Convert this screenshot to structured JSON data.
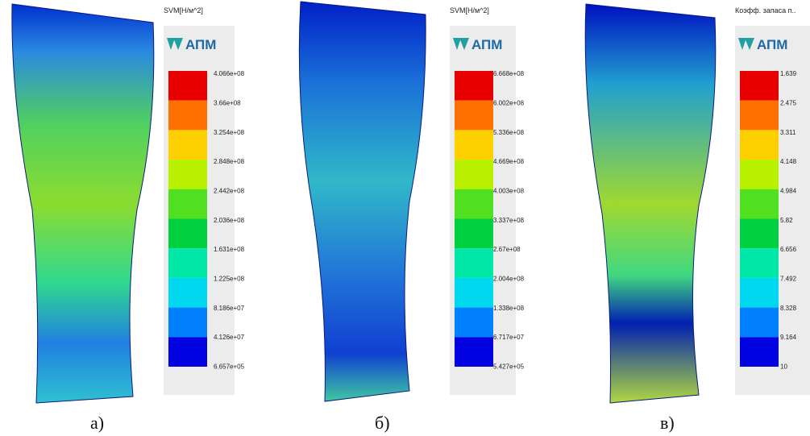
{
  "panels": [
    {
      "legend_title": "SVM[Н/м^2]",
      "logo": "АПМ",
      "caption": "а)",
      "scale_labels": [
        "4.066e+08",
        "3.66e+08",
        "3.254e+08",
        "2.848e+08",
        "2.442e+08",
        "2.036e+08",
        "1.631e+08",
        "1.225e+08",
        "8.186e+07",
        "4.126e+07",
        "6.657e+05"
      ]
    },
    {
      "legend_title": "SVM[Н/м^2]",
      "logo": "АПМ",
      "caption": "б)",
      "scale_labels": [
        "6.668e+08",
        "6.002e+08",
        "5.336e+08",
        "4.669e+08",
        "4.003e+08",
        "3.337e+08",
        "2.67e+08",
        "2.004e+08",
        "1.338e+08",
        "6.717e+07",
        "5.427e+05"
      ]
    },
    {
      "legend_title": "Коэфф. запаса п..",
      "logo": "АПМ",
      "caption": "в)",
      "scale_labels": [
        "1.639",
        "2.475",
        "3.311",
        "4.148",
        "4.984",
        "5.82",
        "6.656",
        "7.492",
        "8.328",
        "9.164",
        "10"
      ]
    }
  ]
}
